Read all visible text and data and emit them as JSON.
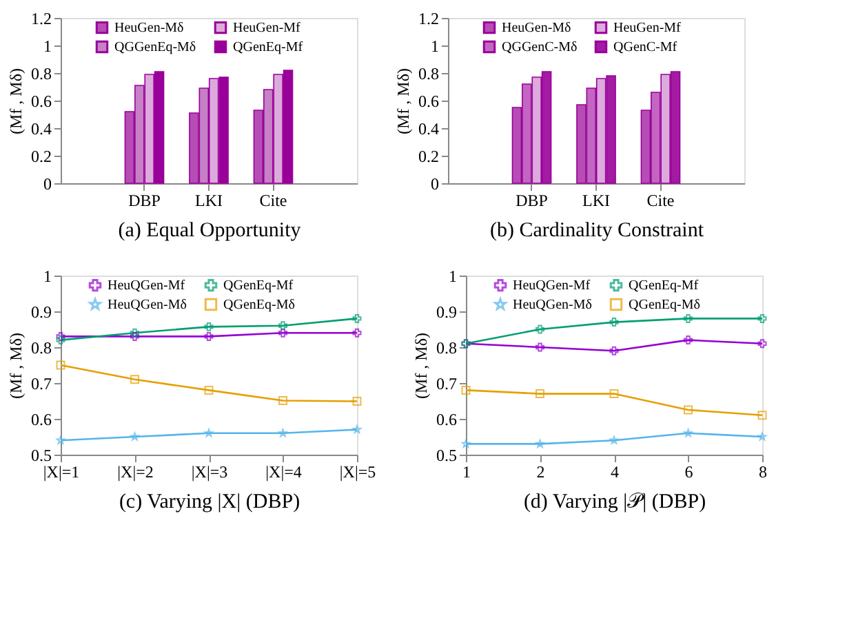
{
  "chart_data": [
    {
      "type": "bar",
      "xlabel": "(a)  Equal Opportunity",
      "ylabel": "(Mf , Mδ)",
      "categories": [
        "DBP",
        "LKI",
        "Cite"
      ],
      "ylim": [
        0,
        1.2
      ],
      "yticks": [
        0,
        0.2,
        0.4,
        0.6,
        0.8,
        1,
        1.2
      ],
      "grid": false,
      "legend": "top",
      "series": [
        {
          "name": "HeuGen-Mδ",
          "color": "#b54db5",
          "values": [
            0.52,
            0.51,
            0.53
          ]
        },
        {
          "name": "QGGenEq-Mδ",
          "color": "#c680c6",
          "values": [
            0.71,
            0.69,
            0.68
          ]
        },
        {
          "name": "HeuGen-Mf",
          "color": "#dcaadc",
          "values": [
            0.79,
            0.76,
            0.79
          ]
        },
        {
          "name": "QGenEq-Mf",
          "color": "#990099",
          "values": [
            0.81,
            0.77,
            0.82
          ]
        }
      ]
    },
    {
      "type": "bar",
      "xlabel": "(b)  Cardinality Constraint",
      "ylabel": "(Mf , Mδ)",
      "categories": [
        "DBP",
        "LKI",
        "Cite"
      ],
      "ylim": [
        0,
        1.2
      ],
      "yticks": [
        0,
        0.2,
        0.4,
        0.6,
        0.8,
        1,
        1.2
      ],
      "grid": false,
      "legend": "top",
      "series": [
        {
          "name": "HeuGen-Mδ",
          "color": "#b54db5",
          "values": [
            0.55,
            0.57,
            0.53
          ]
        },
        {
          "name": "QGGenC-Mδ",
          "color": "#c266c2",
          "values": [
            0.72,
            0.69,
            0.66
          ]
        },
        {
          "name": "HeuGen-Mf",
          "color": "#dcaadc",
          "values": [
            0.77,
            0.76,
            0.79
          ]
        },
        {
          "name": "QGenC-Mf",
          "color": "#a31aa3",
          "values": [
            0.81,
            0.78,
            0.81
          ]
        }
      ]
    },
    {
      "type": "line",
      "xlabel": "(c)  Varying |X| (DBP)",
      "ylabel": "(Mf , Mδ)",
      "categories": [
        "|X|=1",
        "|X|=2",
        "|X|=3",
        "|X|=4",
        "|X|=5"
      ],
      "ylim": [
        0.5,
        1
      ],
      "yticks": [
        0.5,
        0.6,
        0.7,
        0.8,
        0.9,
        1
      ],
      "grid": false,
      "legend": "top",
      "series": [
        {
          "name": "HeuQGen-Mf",
          "color": "#9400d3",
          "marker": "cross",
          "values": [
            0.83,
            0.83,
            0.83,
            0.84,
            0.84
          ]
        },
        {
          "name": "HeuQGen-Mδ",
          "color": "#56b4e9",
          "marker": "star",
          "values": [
            0.54,
            0.55,
            0.56,
            0.56,
            0.57
          ]
        },
        {
          "name": "QGenEq-Mf",
          "color": "#009e73",
          "marker": "cross",
          "values": [
            0.82,
            0.84,
            0.857,
            0.86,
            0.88
          ]
        },
        {
          "name": "QGenEq-Mδ",
          "color": "#e69f00",
          "marker": "square",
          "values": [
            0.75,
            0.71,
            0.68,
            0.651,
            0.649
          ]
        }
      ]
    },
    {
      "type": "line",
      "xlabel": "(d)  Varying |𝒫| (DBP)",
      "ylabel": "(Mf , Mδ)",
      "categories": [
        "1",
        "2",
        "4",
        "6",
        "8"
      ],
      "ylim": [
        0.5,
        1
      ],
      "yticks": [
        0.5,
        0.6,
        0.7,
        0.8,
        0.9,
        1
      ],
      "grid": false,
      "legend": "top",
      "series": [
        {
          "name": "HeuQGen-Mf",
          "color": "#9400d3",
          "marker": "cross",
          "values": [
            0.81,
            0.8,
            0.79,
            0.82,
            0.81
          ]
        },
        {
          "name": "HeuQGen-Mδ",
          "color": "#56b4e9",
          "marker": "star",
          "values": [
            0.53,
            0.53,
            0.54,
            0.56,
            0.55
          ]
        },
        {
          "name": "QGenEq-Mf",
          "color": "#009e73",
          "marker": "cross",
          "values": [
            0.81,
            0.85,
            0.87,
            0.88,
            0.88
          ]
        },
        {
          "name": "QGenEq-Mδ",
          "color": "#e69f00",
          "marker": "square",
          "values": [
            0.68,
            0.67,
            0.67,
            0.625,
            0.61
          ]
        }
      ]
    }
  ]
}
